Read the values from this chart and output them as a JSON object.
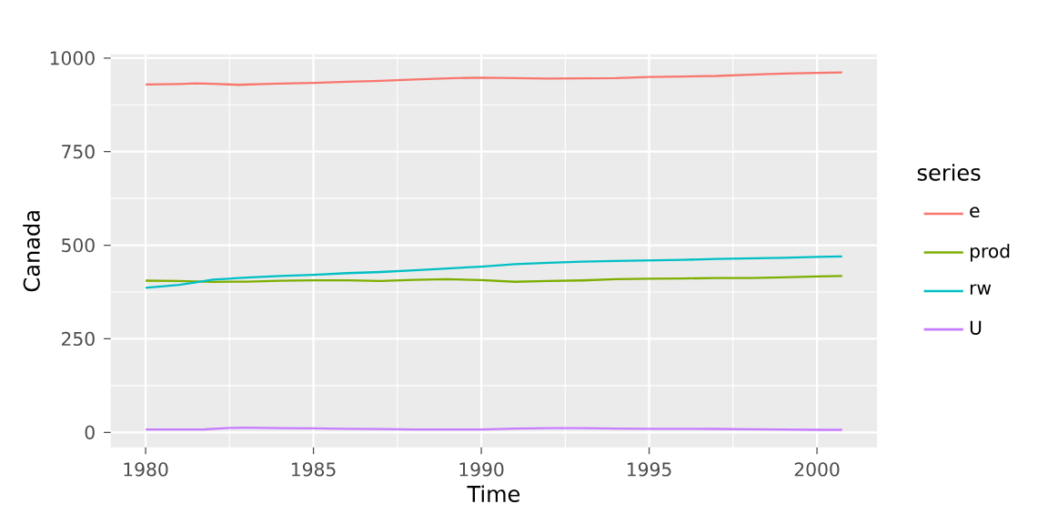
{
  "chart_data": {
    "type": "line",
    "xlabel": "Time",
    "ylabel": "Canada",
    "legend_title": "series",
    "legend": "right",
    "grid": true,
    "xlim": [
      1978.96,
      2001.79
    ],
    "ylim": [
      -40,
      1010
    ],
    "xticks": [
      1980,
      1985,
      1990,
      1995,
      2000
    ],
    "yticks": [
      0,
      250,
      500,
      750,
      1000
    ],
    "series": [
      {
        "name": "e",
        "color": "#f8766d",
        "x": [
          1980,
          1981,
          1981.5,
          1982,
          1982.75,
          1983.5,
          1984,
          1985,
          1986,
          1987,
          1988,
          1989,
          1990,
          1991,
          1992,
          1993,
          1994,
          1995,
          1996,
          1997,
          1998,
          1999,
          2000,
          2000.75
        ],
        "values": [
          929.6,
          930.9,
          932.5,
          931.5,
          928.6,
          930.9,
          931.9,
          933.6,
          936.6,
          939.1,
          943,
          946,
          947.9,
          946.3,
          945.3,
          945.7,
          946.6,
          949.7,
          950.7,
          952.3,
          955.9,
          958.6,
          960.3,
          961.8
        ]
      },
      {
        "name": "prod",
        "color": "#7cae00",
        "x": [
          1980,
          1981,
          1982,
          1983,
          1984,
          1985,
          1986,
          1987,
          1988,
          1989,
          1990,
          1991,
          1992,
          1993,
          1994,
          1995,
          1996,
          1997,
          1998,
          1999,
          2000,
          2000.75
        ],
        "values": [
          405.4,
          404.6,
          402,
          402.8,
          405.2,
          406.2,
          406.5,
          404.6,
          407.6,
          409.3,
          406.8,
          402.4,
          404.5,
          406,
          409.5,
          410.6,
          411,
          412.6,
          412.3,
          414,
          416.6,
          418
        ]
      },
      {
        "name": "rw",
        "color": "#00bfc4",
        "x": [
          1980,
          1981,
          1981.5,
          1982,
          1983,
          1984,
          1985,
          1986,
          1987,
          1988,
          1989,
          1990,
          1991,
          1992,
          1993,
          1994,
          1995,
          1996,
          1997,
          1998,
          1999,
          2000,
          2000.75
        ],
        "values": [
          386.1,
          394,
          401,
          408,
          413.5,
          418,
          421,
          425.5,
          428.5,
          433,
          438,
          443,
          449.5,
          453,
          456,
          458,
          459.5,
          461,
          463.5,
          465,
          466.5,
          469,
          470
        ]
      },
      {
        "name": "U",
        "color": "#c77cff",
        "x": [
          1980,
          1981,
          1981.75,
          1982.5,
          1983,
          1984,
          1985,
          1986,
          1987,
          1988,
          1989,
          1990,
          1991,
          1992,
          1993,
          1994,
          1995,
          1996,
          1997,
          1998,
          1999,
          2000,
          2000.75
        ],
        "values": [
          7.5,
          7.5,
          8,
          12,
          12.5,
          11.5,
          10.5,
          9.6,
          8.9,
          7.8,
          7.5,
          7.9,
          10.3,
          11.2,
          11.4,
          10.4,
          9.5,
          9.6,
          9.2,
          8.3,
          7.6,
          6.8,
          6.8
        ]
      }
    ]
  }
}
